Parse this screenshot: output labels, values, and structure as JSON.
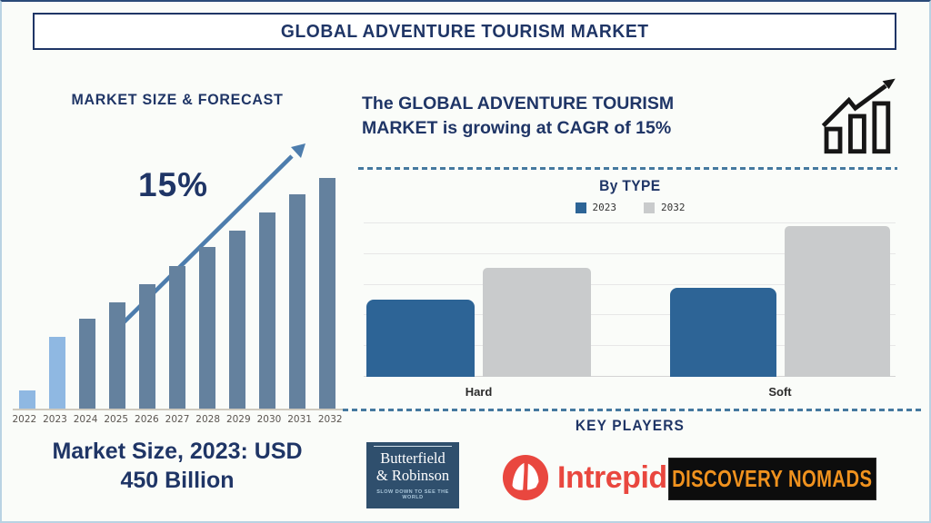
{
  "title": "GLOBAL ADVENTURE TOURISM MARKET",
  "left_panel": {
    "heading": "MARKET SIZE & FORECAST",
    "growth_label": "15%",
    "caption_line1": "Market Size, 2023: USD",
    "caption_line2": "450 Billion"
  },
  "right_panel": {
    "cagr_line1": "The GLOBAL ADVENTURE TOURISM",
    "cagr_line2": "MARKET is growing at CAGR of 15%",
    "by_type_heading": "By TYPE",
    "key_players_heading": "KEY PLAYERS"
  },
  "icons": {
    "growth_icon": "bar-chart-with-rising-arrow",
    "forecast_arrow": "rising-trend-arrow"
  },
  "colors": {
    "navy_text": "#1f3566",
    "forecast_bar": "#64819e",
    "forecast_bar_highlight": "#8fb8e2",
    "arrow_blue": "#4d7dad",
    "type_bar_2023": "#2d6496",
    "type_bar_2032": "#c9cbcc",
    "dashed_divider": "#45799f",
    "intrepid_red": "#e9473f",
    "discovery_orange": "#f0921e",
    "butterfield_navy": "#2f4f6d"
  },
  "chart_data": [
    {
      "type": "bar",
      "title": "MARKET SIZE & FORECAST",
      "categories": [
        "2022",
        "2023",
        "2024",
        "2025",
        "2026",
        "2027",
        "2028",
        "2029",
        "2030",
        "2031",
        "2032"
      ],
      "values": [
        8,
        31,
        39,
        46,
        54,
        62,
        70,
        77,
        85,
        93,
        100
      ],
      "units": "relative bar height, % of 2032 bar (no value axis shown)",
      "known_points": {
        "2023": "USD 450 Billion"
      },
      "annotations": [
        "15% CAGR rising arrow"
      ],
      "bar_color": "#64819e",
      "highlight_color": "#8fb8e2",
      "highlighted_categories": [
        "2022",
        "2023"
      ],
      "grid": "off",
      "xlabel": "",
      "ylabel": ""
    },
    {
      "type": "bar",
      "title": "By TYPE",
      "categories": [
        "Hard",
        "Soft"
      ],
      "series": [
        {
          "name": "2023",
          "color": "#2d6496",
          "values": [
            51,
            59
          ]
        },
        {
          "name": "2032",
          "color": "#c9cbcc",
          "values": [
            72,
            100
          ]
        }
      ],
      "units": "relative bar height, % of tallest bar (no value axis shown)",
      "legend_position": "top",
      "grid": "horizontal",
      "xlabel": "",
      "ylabel": ""
    }
  ],
  "key_players": {
    "butterfield": {
      "line1": "Butterfield",
      "line2": "& Robinson",
      "tagline": "SLOW DOWN TO SEE THE WORLD"
    },
    "intrepid": {
      "name": "Intrepid"
    },
    "discovery": {
      "name": "DISCOVERY NOMADS"
    }
  }
}
